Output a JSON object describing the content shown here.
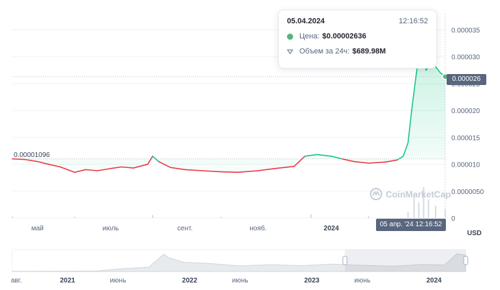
{
  "chart_data": {
    "type": "area",
    "currency_label": "USD",
    "open_price_label": "0.00001096",
    "current_price_label": "0.000026",
    "y_ticks": [
      "0.000035",
      "0.000030",
      "0.000025",
      "0.000020",
      "0.000015",
      "0.000010",
      "0.0000050",
      "0"
    ],
    "y_tick_values": [
      3.5e-05,
      3e-05,
      2.5e-05,
      2e-05,
      1.5e-05,
      1e-05,
      5e-06,
      0
    ],
    "ylim": [
      0,
      3.8e-05
    ],
    "x_ticks": [
      "май",
      "июль",
      "сент.",
      "нояб.",
      "2024"
    ],
    "x_tick_dates": [
      "2023-05-01",
      "2023-07-01",
      "2023-09-01",
      "2023-11-01",
      "2024-01-01"
    ],
    "xlim": [
      "2023-04-10",
      "2024-04-05"
    ],
    "series": [
      {
        "x": [
          "2023-04-10",
          "2023-04-20",
          "2023-05-01",
          "2023-05-10",
          "2023-05-20",
          "2023-06-01",
          "2023-06-10",
          "2023-06-20",
          "2023-07-01",
          "2023-07-10",
          "2023-07-20",
          "2023-08-01",
          "2023-08-05",
          "2023-08-10",
          "2023-08-20",
          "2023-09-01",
          "2023-09-15",
          "2023-10-01",
          "2023-10-15",
          "2023-11-01",
          "2023-11-15",
          "2023-12-01",
          "2023-12-10",
          "2023-12-20",
          "2024-01-01",
          "2024-01-10",
          "2024-01-20",
          "2024-02-01",
          "2024-02-15",
          "2024-02-25",
          "2024-03-01",
          "2024-03-05",
          "2024-03-08",
          "2024-03-12",
          "2024-03-16",
          "2024-03-20",
          "2024-03-25",
          "2024-04-01",
          "2024-04-05"
        ],
        "values": [
          1.1e-05,
          1.09e-05,
          1.05e-05,
          1e-05,
          9.5e-06,
          8.5e-06,
          9e-06,
          8.8e-06,
          9.2e-06,
          9.5e-06,
          9.3e-06,
          1e-05,
          1.15e-05,
          1.05e-05,
          9.4e-06,
          9e-06,
          8.8e-06,
          8.6e-06,
          8.5e-06,
          8.8e-06,
          9.2e-06,
          9.6e-06,
          1.15e-05,
          1.18e-05,
          1.15e-05,
          1.1e-05,
          1.05e-05,
          1.02e-05,
          1.04e-05,
          1.08e-05,
          1.15e-05,
          1.4e-05,
          2e-05,
          2.7e-05,
          3.3e-05,
          2.75e-05,
          2.9e-05,
          2.7e-05,
          2.63e-05
        ]
      }
    ],
    "volume": {
      "x": [
        "2023-04-10",
        "2023-06-01",
        "2023-08-05",
        "2023-10-01",
        "2023-12-15",
        "2024-02-01",
        "2024-03-05",
        "2024-03-10",
        "2024-03-14",
        "2024-03-18",
        "2024-03-22",
        "2024-03-28",
        "2024-04-05"
      ],
      "values": [
        0.5,
        0.4,
        1.0,
        0.4,
        1.2,
        0.6,
        2.0,
        8.0,
        5.0,
        10.0,
        6.0,
        4.0,
        3.0
      ]
    },
    "navigator": {
      "x_ticks": [
        "авг.",
        "2021",
        "июнь",
        "2022",
        "июнь",
        "2023",
        "июнь",
        "2024"
      ],
      "x_tick_dates": [
        "2020-08-01",
        "2021-01-01",
        "2021-06-01",
        "2022-01-01",
        "2022-06-01",
        "2023-01-01",
        "2023-06-01",
        "2024-01-01"
      ],
      "xlim": [
        "2020-07-20",
        "2024-04-05"
      ],
      "selection": [
        "2023-04-10",
        "2024-04-05"
      ],
      "x": [
        "2020-07-20",
        "2020-12-01",
        "2021-04-01",
        "2021-06-01",
        "2021-09-01",
        "2021-10-15",
        "2021-11-01",
        "2021-12-15",
        "2022-03-01",
        "2022-06-01",
        "2022-09-01",
        "2022-12-01",
        "2023-03-01",
        "2023-06-01",
        "2023-09-01",
        "2023-12-01",
        "2024-02-01",
        "2024-03-10",
        "2024-04-05"
      ],
      "values": [
        3e-07,
        4e-07,
        8e-07,
        4e-06,
        7e-06,
        2.8e-05,
        2.2e-05,
        1.5e-05,
        1.3e-05,
        9e-06,
        1.1e-05,
        9.5e-06,
        1.2e-05,
        1e-05,
        8.5e-06,
        1.15e-05,
        1.05e-05,
        2.9e-05,
        2.63e-05
      ]
    }
  },
  "tooltip": {
    "date": "05.04.2024",
    "time": "12:16:52",
    "price_label": "Цена:",
    "price_value": "$0.00002636",
    "volume_label": "Объем за 24ч:",
    "volume_value": "$689.98M"
  },
  "crosshair": {
    "time_label": "05 апр. '24    12:16:52"
  },
  "watermark": "CoinMarketCap",
  "colors": {
    "down": "#ea3943",
    "up": "#16c784",
    "grid": "#eff2f5",
    "label_bg": "#58667e",
    "navigator_fill": "#e8ebee"
  }
}
